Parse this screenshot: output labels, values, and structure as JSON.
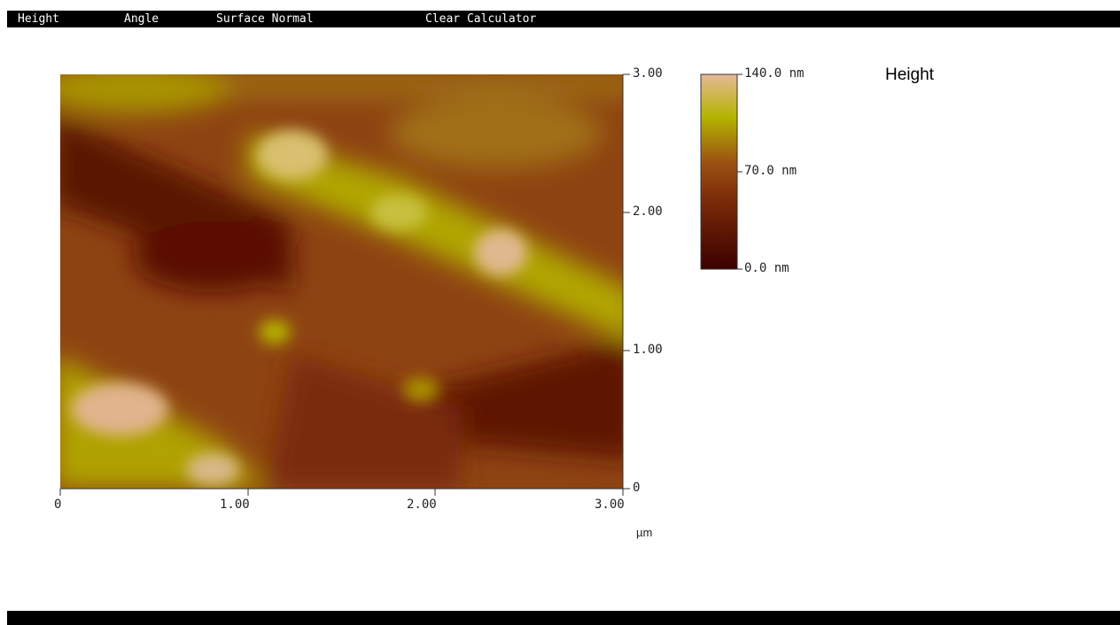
{
  "menu": {
    "items": [
      {
        "label": "Height"
      },
      {
        "label": "Angle"
      },
      {
        "label": "Surface Normal"
      },
      {
        "label": "Clear Calculator"
      }
    ]
  },
  "image": {
    "title": "Height",
    "x_axis": {
      "ticks": [
        "0",
        "1.00",
        "2.00",
        "3.00"
      ],
      "unit": "µm"
    },
    "y_axis": {
      "ticks": [
        "0",
        "1.00",
        "2.00",
        "3.00"
      ]
    },
    "colorbar": {
      "labels": [
        "140.0 nm",
        "70.0 nm",
        "0.0 nm"
      ]
    },
    "colors": {
      "low": "#3c0000",
      "mid": "#8a3a10",
      "high": "#b4b400",
      "peak": "#e6b898"
    }
  }
}
